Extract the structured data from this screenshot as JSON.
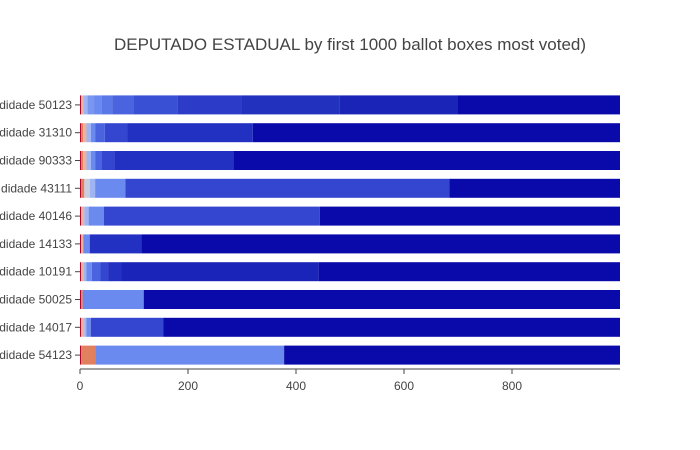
{
  "chart_data": {
    "type": "bar",
    "orientation": "horizontal",
    "stacked": true,
    "title": "DEPUTADO ESTADUAL by first 1000 ballot boxes most voted)",
    "xlabel": "",
    "ylabel": "",
    "xlim": [
      0,
      1000
    ],
    "xticks": [
      0,
      200,
      400,
      600,
      800
    ],
    "grid": false,
    "legend": "none",
    "categories": [
      "didade 54123",
      "didade 14017",
      "didade 50025",
      "didade 10191",
      "didade 14133",
      "didade 40146",
      "didade 43111",
      "didade 90333",
      "didade 31310",
      "didade 50123"
    ],
    "bars": [
      {
        "segments": [
          {
            "end": 2,
            "color": "#b40426"
          },
          {
            "end": 28,
            "color": "#e0805f"
          },
          {
            "end": 378,
            "color": "#6a8aef"
          },
          {
            "end": 1000,
            "color": "#0a0aaa"
          }
        ]
      },
      {
        "segments": [
          {
            "end": 2,
            "color": "#b40426"
          },
          {
            "end": 8,
            "color": "#e8b3a0"
          },
          {
            "end": 12,
            "color": "#9fb5f3"
          },
          {
            "end": 20,
            "color": "#6a8aef"
          },
          {
            "end": 154,
            "color": "#3446cf"
          },
          {
            "end": 1000,
            "color": "#0a0aaa"
          }
        ]
      },
      {
        "segments": [
          {
            "end": 2,
            "color": "#b40426"
          },
          {
            "end": 5,
            "color": "#e0805f"
          },
          {
            "end": 118,
            "color": "#6a8aef"
          },
          {
            "end": 1000,
            "color": "#0a0aaa"
          }
        ]
      },
      {
        "segments": [
          {
            "end": 2,
            "color": "#b40426"
          },
          {
            "end": 6,
            "color": "#e8b3a0"
          },
          {
            "end": 12,
            "color": "#9fb5f3"
          },
          {
            "end": 22,
            "color": "#6a8aef"
          },
          {
            "end": 38,
            "color": "#4a64e0"
          },
          {
            "end": 52,
            "color": "#3446cf"
          },
          {
            "end": 76,
            "color": "#2331c2"
          },
          {
            "end": 442,
            "color": "#1a24b8"
          },
          {
            "end": 1000,
            "color": "#0a0aaa"
          }
        ]
      },
      {
        "segments": [
          {
            "end": 2,
            "color": "#b40426"
          },
          {
            "end": 6,
            "color": "#e8b3a0"
          },
          {
            "end": 18,
            "color": "#6a8aef"
          },
          {
            "end": 114,
            "color": "#2331c2"
          },
          {
            "end": 1000,
            "color": "#0a0aaa"
          }
        ]
      },
      {
        "segments": [
          {
            "end": 2,
            "color": "#b40426"
          },
          {
            "end": 8,
            "color": "#e8b3a0"
          },
          {
            "end": 16,
            "color": "#9fb5f3"
          },
          {
            "end": 44,
            "color": "#6a8aef"
          },
          {
            "end": 444,
            "color": "#3446cf"
          },
          {
            "end": 1000,
            "color": "#0a0aaa"
          }
        ]
      },
      {
        "segments": [
          {
            "end": 2,
            "color": "#b40426"
          },
          {
            "end": 8,
            "color": "#e0805f"
          },
          {
            "end": 18,
            "color": "#c9cfe0"
          },
          {
            "end": 28,
            "color": "#9fb5f3"
          },
          {
            "end": 84,
            "color": "#6a8aef"
          },
          {
            "end": 684,
            "color": "#3446cf"
          },
          {
            "end": 1000,
            "color": "#0a0aaa"
          }
        ]
      },
      {
        "segments": [
          {
            "end": 2,
            "color": "#b40426"
          },
          {
            "end": 6,
            "color": "#e0805f"
          },
          {
            "end": 12,
            "color": "#e8b3a0"
          },
          {
            "end": 20,
            "color": "#9fb5f3"
          },
          {
            "end": 28,
            "color": "#6a8aef"
          },
          {
            "end": 40,
            "color": "#4a64e0"
          },
          {
            "end": 64,
            "color": "#3446cf"
          },
          {
            "end": 284,
            "color": "#2331c2"
          },
          {
            "end": 1000,
            "color": "#0a0aaa"
          }
        ]
      },
      {
        "segments": [
          {
            "end": 2,
            "color": "#b40426"
          },
          {
            "end": 6,
            "color": "#e0805f"
          },
          {
            "end": 12,
            "color": "#e8b3a0"
          },
          {
            "end": 20,
            "color": "#9fb5f3"
          },
          {
            "end": 28,
            "color": "#6a8aef"
          },
          {
            "end": 46,
            "color": "#4a64e0"
          },
          {
            "end": 88,
            "color": "#3446cf"
          },
          {
            "end": 320,
            "color": "#2331c2"
          },
          {
            "end": 1000,
            "color": "#0a0aaa"
          }
        ]
      },
      {
        "segments": [
          {
            "end": 2,
            "color": "#b40426"
          },
          {
            "end": 6,
            "color": "#e8b3a0"
          },
          {
            "end": 14,
            "color": "#9fb5f3"
          },
          {
            "end": 26,
            "color": "#7a96f0"
          },
          {
            "end": 40,
            "color": "#6a8aef"
          },
          {
            "end": 60,
            "color": "#5a78e8"
          },
          {
            "end": 100,
            "color": "#4a64e0"
          },
          {
            "end": 180,
            "color": "#3a50d4"
          },
          {
            "end": 300,
            "color": "#2c3cc8"
          },
          {
            "end": 480,
            "color": "#2231be"
          },
          {
            "end": 700,
            "color": "#1a24b6"
          },
          {
            "end": 1000,
            "color": "#0a0aaa"
          }
        ]
      }
    ]
  }
}
